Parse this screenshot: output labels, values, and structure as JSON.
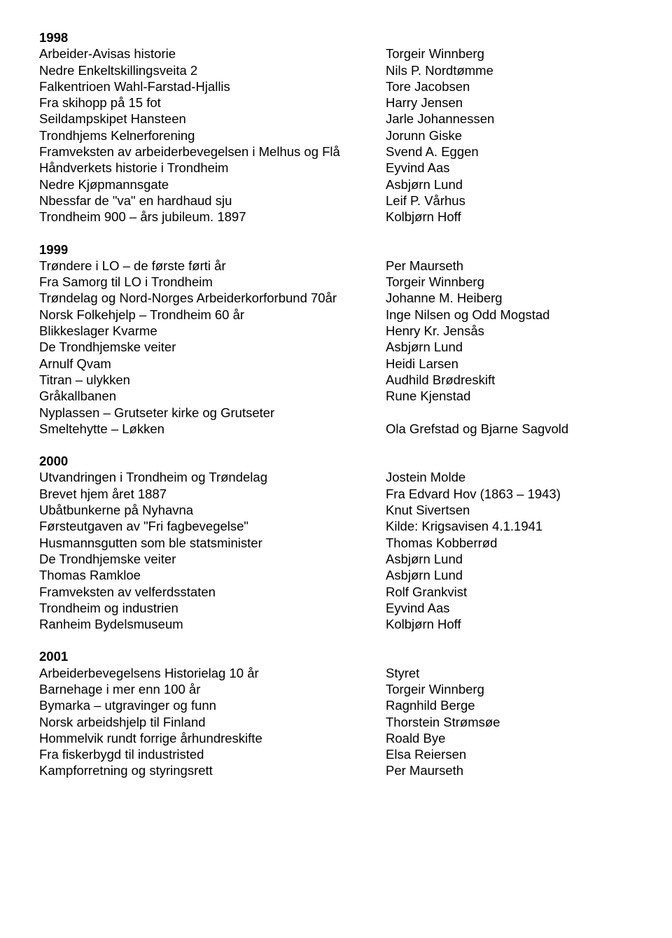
{
  "sections": [
    {
      "year": "1998",
      "items": [
        {
          "title": "Arbeider-Avisas historie",
          "author": "Torgeir Winnberg"
        },
        {
          "title": "Nedre Enkeltskillingsveita 2",
          "author": "Nils P. Nordtømme"
        },
        {
          "title": "Falkentrioen Wahl-Farstad-Hjallis",
          "author": "Tore Jacobsen"
        },
        {
          "title": "Fra skihopp på 15 fot",
          "author": "Harry Jensen"
        },
        {
          "title": "Seildampskipet Hansteen",
          "author": "Jarle Johannessen"
        },
        {
          "title": "Trondhjems Kelnerforening",
          "author": "Jorunn Giske"
        },
        {
          "title": "Framveksten av arbeiderbevegelsen i Melhus og Flå",
          "author": "Svend A. Eggen"
        },
        {
          "title": "Håndverkets historie i Trondheim",
          "author": "Eyvind Aas"
        },
        {
          "title": "Nedre Kjøpmannsgate",
          "author": "Asbjørn Lund"
        },
        {
          "title": "Nbessfar de \"va\" en hardhaud sju",
          "author": "Leif P. Vårhus"
        },
        {
          "title": "Trondheim 900 – års jubileum. 1897",
          "author": "Kolbjørn Hoff"
        }
      ]
    },
    {
      "year": "1999",
      "items": [
        {
          "title": "Trøndere i LO – de første førti år",
          "author": "Per Maurseth"
        },
        {
          "title": "Fra Samorg til LO i Trondheim",
          "author": "Torgeir Winnberg"
        },
        {
          "title": "Trøndelag og Nord-Norges Arbeiderkorforbund 70år",
          "author": "Johanne M. Heiberg"
        },
        {
          "title": "Norsk Folkehjelp – Trondheim 60 år",
          "author": "Inge Nilsen og Odd Mogstad"
        },
        {
          "title": "Blikkeslager Kvarme",
          "author": "Henry Kr. Jensås"
        },
        {
          "title": "De Trondhjemske veiter",
          "author": "Asbjørn Lund"
        },
        {
          "title": "Arnulf Qvam",
          "author": "Heidi Larsen"
        },
        {
          "title": "Titran – ulykken",
          "author": "Audhild Brødreskift"
        },
        {
          "title": "Gråkallbanen",
          "author": "Rune Kjenstad"
        },
        {
          "title": "Nyplassen – Grutseter kirke og Grutseter",
          "author": ""
        },
        {
          "title": "Smeltehytte – Løkken",
          "author": "Ola Grefstad og Bjarne Sagvold"
        }
      ]
    },
    {
      "year": "2000",
      "items": [
        {
          "title": "Utvandringen i Trondheim og Trøndelag",
          "author": "Jostein Molde"
        },
        {
          "title": "Brevet hjem året 1887",
          "author": "Fra Edvard Hov (1863 – 1943)"
        },
        {
          "title": "Ubåtbunkerne på Nyhavna",
          "author": "Knut Sivertsen"
        },
        {
          "title": "Førsteutgaven av \"Fri fagbevegelse\"",
          "author": "Kilde: Krigsavisen 4.1.1941"
        },
        {
          "title": "Husmannsgutten som ble statsminister",
          "author": "Thomas Kobberrød"
        },
        {
          "title": "De Trondhjemske veiter",
          "author": "Asbjørn Lund"
        },
        {
          "title": "Thomas Ramkloe",
          "author": "Asbjørn Lund"
        },
        {
          "title": "Framveksten av velferdsstaten",
          "author": "Rolf Grankvist"
        },
        {
          "title": "Trondheim og industrien",
          "author": "Eyvind Aas"
        },
        {
          "title": "Ranheim Bydelsmuseum",
          "author": "Kolbjørn Hoff"
        }
      ]
    },
    {
      "year": "2001",
      "items": [
        {
          "title": "Arbeiderbevegelsens Historielag 10 år",
          "author": "Styret"
        },
        {
          "title": "Barnehage i mer enn 100 år",
          "author": "Torgeir Winnberg"
        },
        {
          "title": "Bymarka – utgravinger og funn",
          "author": "Ragnhild Berge"
        },
        {
          "title": "Norsk arbeidshjelp til Finland",
          "author": "Thorstein Strømsøe"
        },
        {
          "title": "Hommelvik rundt forrige århundreskifte",
          "author": "Roald Bye"
        },
        {
          "title": "Fra fiskerbygd til industristed",
          "author": "Elsa Reiersen"
        },
        {
          "title": "Kampforretning og styringsrett",
          "author": "Per Maurseth"
        }
      ]
    }
  ]
}
